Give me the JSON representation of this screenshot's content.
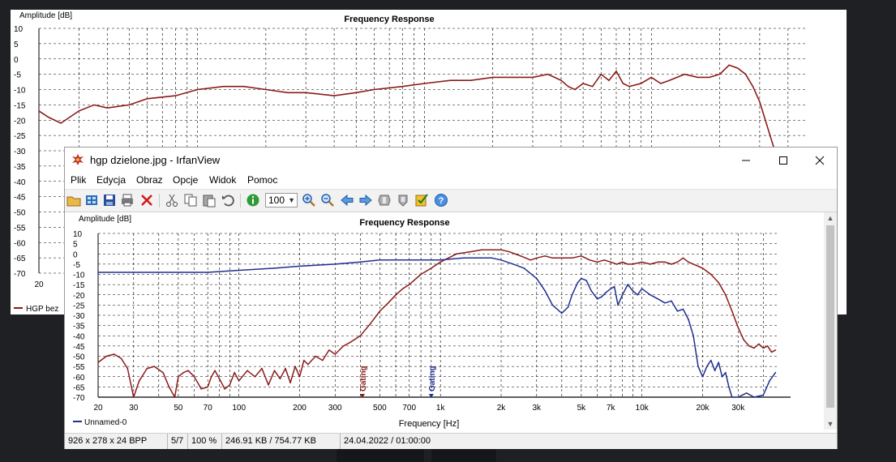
{
  "background_chart": {
    "y_axis_title": "Amplitude [dB]",
    "title": "Frequency Response",
    "y_ticks": [
      "10",
      "5",
      "0",
      "-5",
      "-10",
      "-15",
      "-20",
      "-25",
      "-30",
      "-35",
      "-40",
      "-45",
      "-50",
      "-55",
      "-60",
      "-65",
      "-70"
    ],
    "x_tick_first": "20",
    "legend_label": "HGP bez",
    "series_color": "#8b1a1a"
  },
  "window": {
    "title": "hgp dzielone.jpg - IrfanView",
    "menu": [
      "Plik",
      "Edycja",
      "Obraz",
      "Opcje",
      "Widok",
      "Pomoc"
    ],
    "zoom_value": "100",
    "toolbar_icons": [
      "open-folder-icon",
      "thumbnails-icon",
      "save-icon",
      "print-icon",
      "delete-icon",
      "cut-icon",
      "copy-icon",
      "paste-icon",
      "undo-icon",
      "info-icon",
      "zoom-in-icon",
      "zoom-out-icon",
      "previous-icon",
      "next-icon",
      "slideshow-icon",
      "slideshow-back-icon",
      "properties-icon",
      "help-icon"
    ]
  },
  "chart_data": {
    "type": "line",
    "title": "Frequency Response",
    "ylabel": "Amplitude [dB]",
    "xlabel": "Frequency [Hz]",
    "x_scale": "log",
    "xlim": [
      20,
      48000
    ],
    "ylim": [
      -70,
      10
    ],
    "y_ticks": [
      "10",
      "5",
      "0",
      "-5",
      "-10",
      "-15",
      "-20",
      "-25",
      "-30",
      "-35",
      "-40",
      "-45",
      "-50",
      "-55",
      "-60",
      "-65",
      "-70"
    ],
    "x_ticks": [
      {
        "label": "20",
        "value": 20
      },
      {
        "label": "30",
        "value": 30
      },
      {
        "label": "50",
        "value": 50
      },
      {
        "label": "70",
        "value": 70
      },
      {
        "label": "100",
        "value": 100
      },
      {
        "label": "200",
        "value": 200
      },
      {
        "label": "300",
        "value": 300
      },
      {
        "label": "500",
        "value": 500
      },
      {
        "label": "700",
        "value": 700
      },
      {
        "label": "1k",
        "value": 1000
      },
      {
        "label": "2k",
        "value": 2000
      },
      {
        "label": "3k",
        "value": 3000
      },
      {
        "label": "5k",
        "value": 5000
      },
      {
        "label": "7k",
        "value": 7000
      },
      {
        "label": "10k",
        "value": 10000
      },
      {
        "label": "20k",
        "value": 20000
      },
      {
        "label": "30k",
        "value": 30000
      }
    ],
    "gridlines": true,
    "gating_markers": [
      {
        "label": "Gating",
        "x": 410,
        "color": "#8b1a1a"
      },
      {
        "label": "Gating",
        "x": 900,
        "color": "#1f2f8f"
      }
    ],
    "legend_visible": [
      "Unnamed-0"
    ],
    "series": [
      {
        "name": "",
        "color": "#8b1a1a",
        "x": [
          20,
          22,
          24,
          26,
          28,
          30,
          32,
          35,
          38,
          42,
          45,
          48,
          50,
          53,
          56,
          60,
          65,
          70,
          73,
          76,
          80,
          85,
          90,
          95,
          100,
          110,
          120,
          130,
          140,
          150,
          160,
          170,
          180,
          190,
          200,
          210,
          220,
          240,
          260,
          280,
          300,
          330,
          360,
          400,
          450,
          500,
          550,
          600,
          650,
          700,
          800,
          900,
          1000,
          1200,
          1400,
          1600,
          1800,
          2000,
          2200,
          2500,
          2800,
          3000,
          3300,
          3600,
          4000,
          4500,
          5000,
          5500,
          6000,
          6500,
          7000,
          7500,
          8000,
          8500,
          9000,
          10000,
          11000,
          12000,
          13000,
          14000,
          15000,
          16000,
          17000,
          18000,
          19000,
          20000,
          22000,
          24000,
          26000,
          28000,
          30000,
          32000,
          34000,
          36000,
          38000,
          40000,
          42000,
          44000,
          46000
        ],
        "y": [
          -53,
          -50,
          -49,
          -51,
          -56,
          -70,
          -62,
          -56,
          -55,
          -58,
          -65,
          -70,
          -60,
          -58,
          -57,
          -60,
          -66,
          -65,
          -60,
          -57,
          -61,
          -66,
          -64,
          -58,
          -62,
          -57,
          -60,
          -56,
          -64,
          -57,
          -61,
          -56,
          -63,
          -55,
          -60,
          -52,
          -54,
          -50,
          -52,
          -47,
          -49,
          -45,
          -43,
          -40,
          -34,
          -28,
          -24,
          -20,
          -17,
          -15,
          -10,
          -7,
          -4,
          0,
          1,
          2,
          2,
          2,
          1,
          -1,
          -3,
          -2,
          -1,
          -2,
          -2,
          -2,
          -1,
          -3,
          -4,
          -3,
          -4,
          -5,
          -4,
          -5,
          -5,
          -4,
          -5,
          -4,
          -4,
          -5,
          -4,
          -2,
          -4,
          -5,
          -6,
          -7,
          -10,
          -14,
          -20,
          -28,
          -36,
          -42,
          -45,
          -46,
          -44,
          -46,
          -45,
          -48,
          -47
        ]
      },
      {
        "name": "Unnamed-0",
        "color": "#1f2f8f",
        "x": [
          20,
          30,
          50,
          70,
          100,
          150,
          200,
          300,
          400,
          500,
          700,
          1000,
          1300,
          1600,
          1800,
          2000,
          2300,
          2600,
          3000,
          3300,
          3600,
          4000,
          4300,
          4500,
          4800,
          5000,
          5300,
          5600,
          6000,
          6300,
          6600,
          7000,
          7300,
          7600,
          8000,
          8500,
          9000,
          9500,
          10000,
          11000,
          12000,
          13000,
          14000,
          15000,
          16000,
          17000,
          18000,
          19000,
          20000,
          21000,
          22000,
          23000,
          24000,
          25000,
          26000,
          27000,
          28000,
          30000,
          33000,
          36000,
          40000,
          43000,
          46000
        ],
        "y": [
          -9,
          -9,
          -9,
          -9,
          -8,
          -7,
          -6,
          -5,
          -4,
          -3,
          -3,
          -3,
          -2,
          -2,
          -2,
          -3,
          -5,
          -7,
          -12,
          -18,
          -25,
          -29,
          -26,
          -20,
          -14,
          -12,
          -13,
          -18,
          -22,
          -21,
          -19,
          -17,
          -16,
          -25,
          -20,
          -15,
          -18,
          -20,
          -17,
          -20,
          -22,
          -24,
          -23,
          -28,
          -27,
          -32,
          -40,
          -55,
          -60,
          -55,
          -52,
          -57,
          -53,
          -60,
          -58,
          -65,
          -70,
          -70,
          -68,
          -70,
          -69,
          -62,
          -58
        ]
      }
    ]
  },
  "status": {
    "dimensions": "926 x 278 x 24 BPP",
    "page": "5/7",
    "zoom": "100 %",
    "size": "246.91 KB / 754.77 KB",
    "datetime": "24.04.2022 / 01:00:00"
  }
}
